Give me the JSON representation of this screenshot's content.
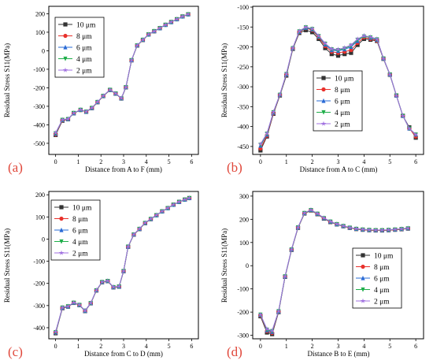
{
  "chart_data": [
    {
      "type": "line",
      "panel_label": "(a)",
      "xlabel": "Distance from A to F (mm)",
      "ylabel": "Residual Stress S11(MPa)",
      "xlim": [
        -0.3,
        6.3
      ],
      "ylim": [
        -560,
        240
      ],
      "xticks": [
        0,
        1,
        2,
        3,
        4,
        5,
        6
      ],
      "yticks": [
        -500,
        -400,
        -300,
        -200,
        -100,
        0,
        100,
        200
      ],
      "legend_position": "top-left",
      "x": [
        0,
        0.3,
        0.55,
        0.8,
        1.1,
        1.35,
        1.6,
        1.85,
        2.1,
        2.4,
        2.65,
        2.9,
        3.1,
        3.35,
        3.6,
        3.85,
        4.1,
        4.35,
        4.6,
        4.85,
        5.1,
        5.35,
        5.6,
        5.85
      ],
      "series": [
        {
          "name": "10 μm",
          "values": [
            -455,
            -378,
            -370,
            -338,
            -320,
            -330,
            -310,
            -278,
            -245,
            -212,
            -232,
            -258,
            -198,
            -52,
            28,
            58,
            88,
            105,
            122,
            140,
            155,
            170,
            185,
            197
          ]
        },
        {
          "name": "8 μm",
          "values": [
            -452,
            -376,
            -370,
            -337,
            -320,
            -330,
            -310,
            -278,
            -245,
            -212,
            -232,
            -258,
            -198,
            -52,
            28,
            58,
            88,
            105,
            122,
            140,
            155,
            170,
            185,
            197
          ]
        },
        {
          "name": "6 μm",
          "values": [
            -448,
            -374,
            -369,
            -337,
            -319,
            -329,
            -309,
            -277,
            -244,
            -211,
            -231,
            -257,
            -197,
            -51,
            29,
            59,
            88,
            106,
            122,
            140,
            155,
            170,
            185,
            197
          ]
        },
        {
          "name": "4 μm",
          "values": [
            -446,
            -373,
            -369,
            -336,
            -319,
            -329,
            -309,
            -277,
            -244,
            -211,
            -231,
            -257,
            -197,
            -51,
            29,
            59,
            88,
            106,
            122,
            140,
            155,
            170,
            185,
            197
          ]
        },
        {
          "name": "2 μm",
          "values": [
            -443,
            -372,
            -368,
            -336,
            -318,
            -328,
            -308,
            -276,
            -243,
            -210,
            -230,
            -256,
            -196,
            -50,
            30,
            60,
            89,
            106,
            123,
            141,
            156,
            171,
            186,
            198
          ]
        }
      ]
    },
    {
      "type": "line",
      "panel_label": "(b)",
      "xlabel": "Distance from A to C (mm)",
      "ylabel": "Residual Stress S11(MPa)",
      "xlim": [
        -0.3,
        6.3
      ],
      "ylim": [
        -470,
        -98
      ],
      "xticks": [
        0,
        1,
        2,
        3,
        4,
        5,
        6
      ],
      "yticks": [
        -450,
        -400,
        -350,
        -300,
        -250,
        -200,
        -150,
        -100
      ],
      "legend_position": "center-left",
      "x": [
        0,
        0.25,
        0.5,
        0.75,
        1.0,
        1.25,
        1.5,
        1.75,
        2.0,
        2.25,
        2.5,
        2.75,
        3.0,
        3.25,
        3.5,
        3.75,
        4.0,
        4.25,
        4.5,
        4.75,
        5.0,
        5.25,
        5.5,
        5.75,
        6.0
      ],
      "series": [
        {
          "name": "10 μm",
          "values": [
            -460,
            -425,
            -368,
            -322,
            -272,
            -205,
            -165,
            -158,
            -163,
            -180,
            -203,
            -218,
            -222,
            -218,
            -215,
            -195,
            -180,
            -182,
            -185,
            -230,
            -270,
            -322,
            -373,
            -402,
            -428
          ]
        },
        {
          "name": "8 μm",
          "values": [
            -455,
            -423,
            -367,
            -321,
            -270,
            -204,
            -163,
            -153,
            -158,
            -176,
            -198,
            -212,
            -215,
            -212,
            -208,
            -190,
            -176,
            -180,
            -184,
            -229,
            -269,
            -322,
            -373,
            -405,
            -425
          ]
        },
        {
          "name": "6 μm",
          "values": [
            -448,
            -420,
            -365,
            -320,
            -269,
            -203,
            -162,
            -152,
            -156,
            -174,
            -194,
            -208,
            -210,
            -206,
            -200,
            -185,
            -172,
            -177,
            -182,
            -229,
            -269,
            -322,
            -373,
            -405,
            -420
          ]
        },
        {
          "name": "4 μm",
          "values": [
            -446,
            -418,
            -364,
            -320,
            -268,
            -203,
            -161,
            -151,
            -155,
            -173,
            -192,
            -206,
            -208,
            -204,
            -197,
            -182,
            -174,
            -176,
            -181,
            -229,
            -269,
            -322,
            -373,
            -405,
            -420
          ]
        },
        {
          "name": "2 μm",
          "values": [
            -444,
            -417,
            -363,
            -319,
            -267,
            -202,
            -160,
            -150,
            -154,
            -172,
            -191,
            -205,
            -206,
            -202,
            -195,
            -180,
            -172,
            -175,
            -180,
            -229,
            -269,
            -322,
            -373,
            -405,
            -420
          ]
        }
      ]
    },
    {
      "type": "line",
      "panel_label": "(c)",
      "xlabel": "Distance from C to D (mm)",
      "ylabel": "Residual Stress S11(MPa)",
      "xlim": [
        -0.3,
        6.3
      ],
      "ylim": [
        -450,
        215
      ],
      "xticks": [
        0,
        1,
        2,
        3,
        4,
        5,
        6
      ],
      "yticks": [
        -400,
        -300,
        -200,
        -100,
        0,
        100,
        200
      ],
      "legend_position": "top-left",
      "x": [
        0,
        0.3,
        0.55,
        0.8,
        1.05,
        1.3,
        1.55,
        1.8,
        2.05,
        2.3,
        2.55,
        2.8,
        3.0,
        3.2,
        3.45,
        3.7,
        3.95,
        4.2,
        4.45,
        4.7,
        4.95,
        5.2,
        5.45,
        5.7,
        5.9
      ],
      "series": [
        {
          "name": "10 μm",
          "values": [
            -425,
            -312,
            -305,
            -288,
            -298,
            -325,
            -290,
            -232,
            -195,
            -190,
            -218,
            -215,
            -145,
            -35,
            20,
            45,
            72,
            90,
            108,
            125,
            140,
            155,
            168,
            178,
            185
          ]
        },
        {
          "name": "8 μm",
          "values": [
            -423,
            -311,
            -304,
            -288,
            -298,
            -324,
            -290,
            -232,
            -195,
            -190,
            -218,
            -215,
            -145,
            -35,
            20,
            45,
            72,
            90,
            108,
            125,
            140,
            155,
            168,
            178,
            185
          ]
        },
        {
          "name": "6 μm",
          "values": [
            -421,
            -310,
            -304,
            -287,
            -297,
            -324,
            -289,
            -231,
            -194,
            -189,
            -217,
            -214,
            -144,
            -34,
            21,
            46,
            73,
            91,
            108,
            125,
            140,
            155,
            168,
            178,
            185
          ]
        },
        {
          "name": "4 μm",
          "values": [
            -420,
            -309,
            -303,
            -287,
            -297,
            -323,
            -289,
            -231,
            -194,
            -189,
            -217,
            -214,
            -144,
            -34,
            21,
            46,
            73,
            91,
            108,
            125,
            140,
            155,
            168,
            178,
            185
          ]
        },
        {
          "name": "2 μm",
          "values": [
            -418,
            -308,
            -303,
            -286,
            -296,
            -323,
            -288,
            -230,
            -193,
            -188,
            -216,
            -213,
            -143,
            -33,
            22,
            47,
            74,
            92,
            109,
            126,
            141,
            156,
            169,
            179,
            186
          ]
        }
      ]
    },
    {
      "type": "line",
      "panel_label": "(d)",
      "xlabel": "Distance B to E (mm)",
      "ylabel": "Residual Stress S11(MPa)",
      "xlim": [
        -0.3,
        6.3
      ],
      "ylim": [
        -315,
        320
      ],
      "xticks": [
        0,
        1,
        2,
        3,
        4,
        5,
        6
      ],
      "yticks": [
        -300,
        -200,
        -100,
        0,
        100,
        200,
        300
      ],
      "legend_position": "bottom-right",
      "x": [
        0,
        0.25,
        0.45,
        0.7,
        0.95,
        1.2,
        1.45,
        1.7,
        1.95,
        2.2,
        2.45,
        2.7,
        2.95,
        3.2,
        3.45,
        3.7,
        3.95,
        4.2,
        4.45,
        4.7,
        4.95,
        5.2,
        5.45,
        5.7
      ],
      "series": [
        {
          "name": "10 μm",
          "values": [
            -218,
            -288,
            -295,
            -200,
            -48,
            68,
            163,
            225,
            238,
            222,
            203,
            188,
            178,
            170,
            163,
            158,
            155,
            153,
            152,
            152,
            153,
            155,
            157,
            160
          ]
        },
        {
          "name": "8 μm",
          "values": [
            -215,
            -282,
            -290,
            -198,
            -47,
            69,
            164,
            226,
            239,
            223,
            204,
            189,
            179,
            170,
            163,
            158,
            155,
            153,
            152,
            152,
            153,
            155,
            157,
            160
          ]
        },
        {
          "name": "6 μm",
          "values": [
            -212,
            -278,
            -285,
            -197,
            -46,
            70,
            165,
            227,
            240,
            224,
            205,
            190,
            179,
            171,
            164,
            159,
            156,
            154,
            153,
            153,
            154,
            156,
            158,
            161
          ]
        },
        {
          "name": "4 μm",
          "values": [
            -211,
            -276,
            -282,
            -196,
            -46,
            70,
            165,
            227,
            240,
            224,
            205,
            190,
            179,
            171,
            164,
            159,
            156,
            154,
            153,
            153,
            154,
            156,
            158,
            161
          ]
        },
        {
          "name": "2 μm",
          "values": [
            -210,
            -273,
            -280,
            -195,
            -45,
            71,
            166,
            228,
            241,
            225,
            206,
            191,
            180,
            172,
            165,
            160,
            157,
            155,
            154,
            154,
            155,
            157,
            159,
            162
          ]
        }
      ]
    }
  ],
  "styles": {
    "series_colors": [
      "#333333",
      "#e8312c",
      "#2a6bd6",
      "#1fae4a",
      "#a070e0"
    ],
    "series_markers": [
      "square",
      "circle",
      "triangle-up",
      "triangle-down",
      "star"
    ],
    "panel_label_color": "#e0473a",
    "axis_color": "#000000"
  }
}
